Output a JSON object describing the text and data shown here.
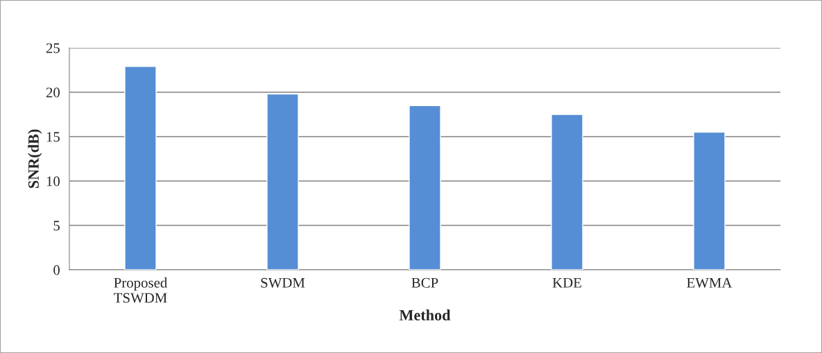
{
  "chart_data": {
    "type": "bar",
    "xlabel": "Method",
    "ylabel": "SNR(dB)",
    "categories": [
      "Proposed\nTSWDM",
      "SWDM",
      "BCP",
      "KDE",
      "EWMA"
    ],
    "values": [
      22.9,
      19.8,
      18.5,
      17.5,
      15.5
    ],
    "color": "#558ed5",
    "ylim": [
      0,
      25
    ],
    "yticks": [
      0,
      5,
      10,
      15,
      20,
      25
    ],
    "grid": "y",
    "legend": false
  }
}
